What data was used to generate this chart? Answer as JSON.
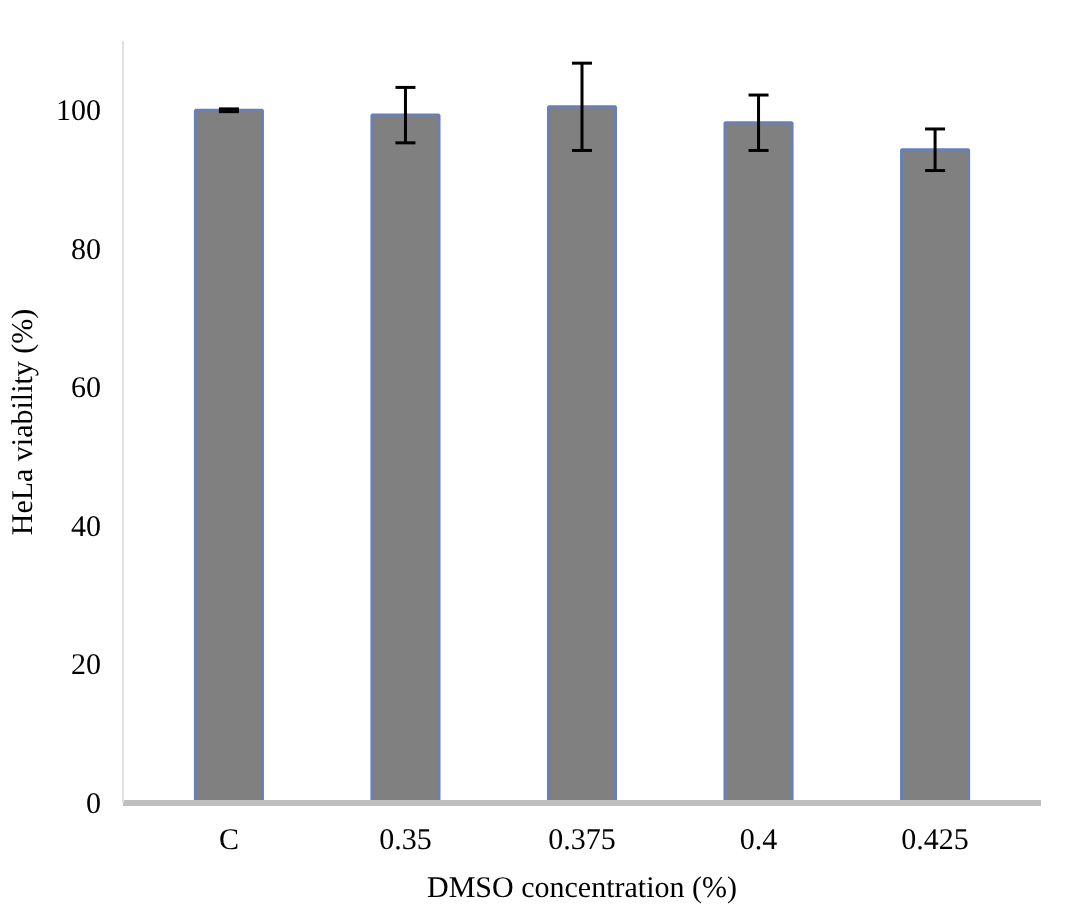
{
  "chart_data": {
    "type": "bar",
    "xlabel": "DMSO concentration (%)",
    "ylabel": "HeLa viability (%)",
    "categories": [
      "C",
      "0.35",
      "0.375",
      "0.4",
      "0.425"
    ],
    "values": [
      100,
      99.3,
      100.5,
      98.2,
      94.3
    ],
    "errors": [
      0.2,
      4,
      6.3,
      4,
      3
    ],
    "color": "#808080",
    "ylim": [
      0,
      110
    ],
    "yticks": [
      0,
      20,
      40,
      60,
      80,
      100
    ],
    "grid": false
  }
}
